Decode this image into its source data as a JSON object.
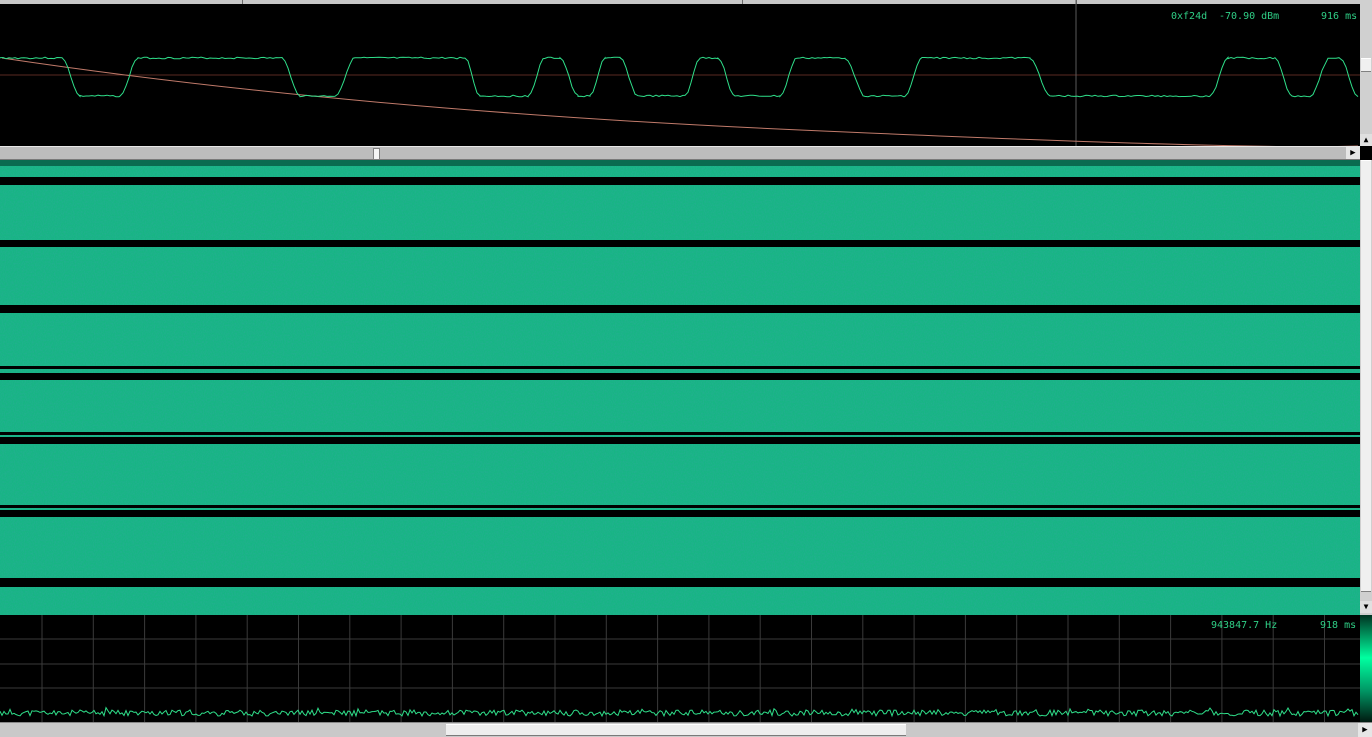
{
  "waveform_panel": {
    "hex_value": "0xf24d",
    "level": "-70.90 dBm",
    "time": "916 ms",
    "trace_color": "#2fdf8a",
    "slope_color": "#c07a6a"
  },
  "spectrum_panel": {
    "frequency": "943847.7 Hz",
    "time": "918 ms",
    "trace_color": "#2fdf8a",
    "grid_color": "#3a3a3a"
  },
  "spectrogram": {
    "fill_color": "#18b584",
    "band_color": "#000000"
  },
  "scrollbars": {
    "up_arrow": "▲",
    "down_arrow": "▼",
    "right_arrow": "▶"
  }
}
